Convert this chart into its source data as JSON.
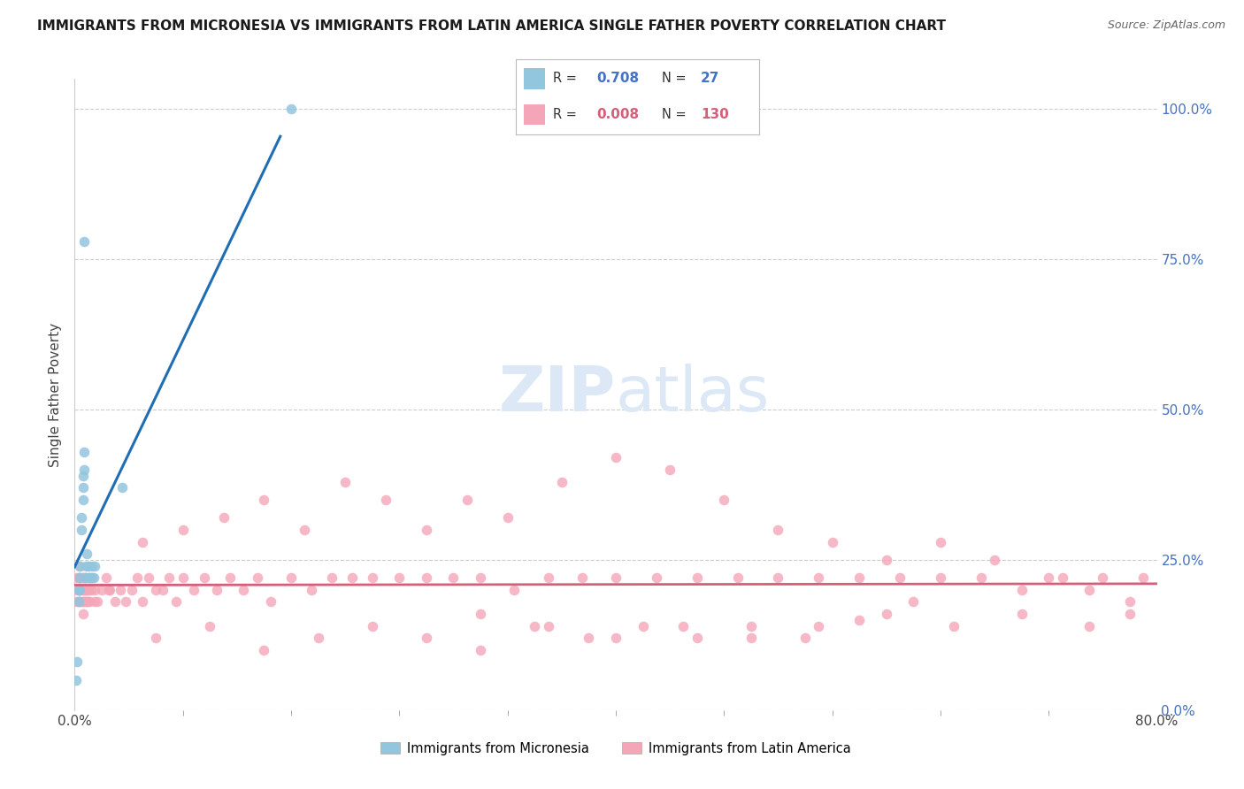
{
  "title": "IMMIGRANTS FROM MICRONESIA VS IMMIGRANTS FROM LATIN AMERICA SINGLE FATHER POVERTY CORRELATION CHART",
  "source": "Source: ZipAtlas.com",
  "ylabel": "Single Father Poverty",
  "xlim": [
    0.0,
    0.8
  ],
  "ylim": [
    0.0,
    1.05
  ],
  "xtick_pos": [
    0.0,
    0.8
  ],
  "xtick_labels": [
    "0.0%",
    "80.0%"
  ],
  "ytick_vals_right": [
    0.0,
    0.25,
    0.5,
    0.75,
    1.0
  ],
  "ytick_labels_right": [
    "0.0%",
    "25.0%",
    "50.0%",
    "75.0%",
    "100.0%"
  ],
  "legend_blue_R": "0.708",
  "legend_blue_N": "27",
  "legend_pink_R": "0.008",
  "legend_pink_N": "130",
  "blue_color": "#92c5de",
  "pink_color": "#f4a6b8",
  "blue_line_color": "#1f6db5",
  "pink_line_color": "#d45f7a",
  "watermark_color": "#dce8f5",
  "blue_scatter_x": [
    0.001,
    0.002,
    0.003,
    0.003,
    0.004,
    0.004,
    0.004,
    0.005,
    0.005,
    0.006,
    0.006,
    0.006,
    0.007,
    0.007,
    0.007,
    0.008,
    0.008,
    0.009,
    0.01,
    0.01,
    0.011,
    0.012,
    0.013,
    0.014,
    0.015,
    0.035,
    0.16
  ],
  "blue_scatter_y": [
    0.05,
    0.08,
    0.2,
    0.18,
    0.22,
    0.2,
    0.24,
    0.3,
    0.32,
    0.35,
    0.37,
    0.39,
    0.4,
    0.43,
    0.78,
    0.22,
    0.24,
    0.26,
    0.22,
    0.24,
    0.22,
    0.22,
    0.24,
    0.22,
    0.24,
    0.37,
    1.0
  ],
  "pink_scatter_x": [
    0.001,
    0.002,
    0.002,
    0.003,
    0.003,
    0.003,
    0.004,
    0.004,
    0.004,
    0.004,
    0.005,
    0.005,
    0.005,
    0.006,
    0.006,
    0.006,
    0.006,
    0.007,
    0.007,
    0.007,
    0.008,
    0.008,
    0.008,
    0.009,
    0.009,
    0.01,
    0.01,
    0.011,
    0.012,
    0.013,
    0.015,
    0.017,
    0.02,
    0.023,
    0.026,
    0.03,
    0.034,
    0.038,
    0.042,
    0.046,
    0.05,
    0.055,
    0.06,
    0.065,
    0.07,
    0.075,
    0.08,
    0.088,
    0.096,
    0.105,
    0.115,
    0.125,
    0.135,
    0.145,
    0.16,
    0.175,
    0.19,
    0.205,
    0.22,
    0.24,
    0.26,
    0.28,
    0.3,
    0.325,
    0.35,
    0.375,
    0.4,
    0.43,
    0.46,
    0.49,
    0.52,
    0.55,
    0.58,
    0.61,
    0.64,
    0.67,
    0.7,
    0.73,
    0.76,
    0.79,
    0.05,
    0.08,
    0.11,
    0.14,
    0.17,
    0.2,
    0.23,
    0.26,
    0.29,
    0.32,
    0.36,
    0.4,
    0.44,
    0.48,
    0.52,
    0.56,
    0.6,
    0.64,
    0.68,
    0.72,
    0.75,
    0.78,
    0.3,
    0.35,
    0.4,
    0.45,
    0.5,
    0.55,
    0.6,
    0.65,
    0.7,
    0.75,
    0.78,
    0.62,
    0.58,
    0.54,
    0.5,
    0.46,
    0.42,
    0.38,
    0.34,
    0.3,
    0.26,
    0.22,
    0.18,
    0.14,
    0.1,
    0.06,
    0.025,
    0.015
  ],
  "pink_scatter_y": [
    0.18,
    0.2,
    0.22,
    0.18,
    0.2,
    0.22,
    0.18,
    0.2,
    0.22,
    0.24,
    0.18,
    0.2,
    0.22,
    0.16,
    0.18,
    0.2,
    0.22,
    0.18,
    0.2,
    0.22,
    0.18,
    0.2,
    0.22,
    0.18,
    0.2,
    0.18,
    0.2,
    0.18,
    0.2,
    0.22,
    0.2,
    0.18,
    0.2,
    0.22,
    0.2,
    0.18,
    0.2,
    0.18,
    0.2,
    0.22,
    0.18,
    0.22,
    0.2,
    0.2,
    0.22,
    0.18,
    0.22,
    0.2,
    0.22,
    0.2,
    0.22,
    0.2,
    0.22,
    0.18,
    0.22,
    0.2,
    0.22,
    0.22,
    0.22,
    0.22,
    0.22,
    0.22,
    0.22,
    0.2,
    0.22,
    0.22,
    0.22,
    0.22,
    0.22,
    0.22,
    0.22,
    0.22,
    0.22,
    0.22,
    0.22,
    0.22,
    0.2,
    0.22,
    0.22,
    0.22,
    0.28,
    0.3,
    0.32,
    0.35,
    0.3,
    0.38,
    0.35,
    0.3,
    0.35,
    0.32,
    0.38,
    0.42,
    0.4,
    0.35,
    0.3,
    0.28,
    0.25,
    0.28,
    0.25,
    0.22,
    0.2,
    0.18,
    0.16,
    0.14,
    0.12,
    0.14,
    0.12,
    0.14,
    0.16,
    0.14,
    0.16,
    0.14,
    0.16,
    0.18,
    0.15,
    0.12,
    0.14,
    0.12,
    0.14,
    0.12,
    0.14,
    0.1,
    0.12,
    0.14,
    0.12,
    0.1,
    0.14,
    0.12,
    0.2,
    0.18
  ]
}
